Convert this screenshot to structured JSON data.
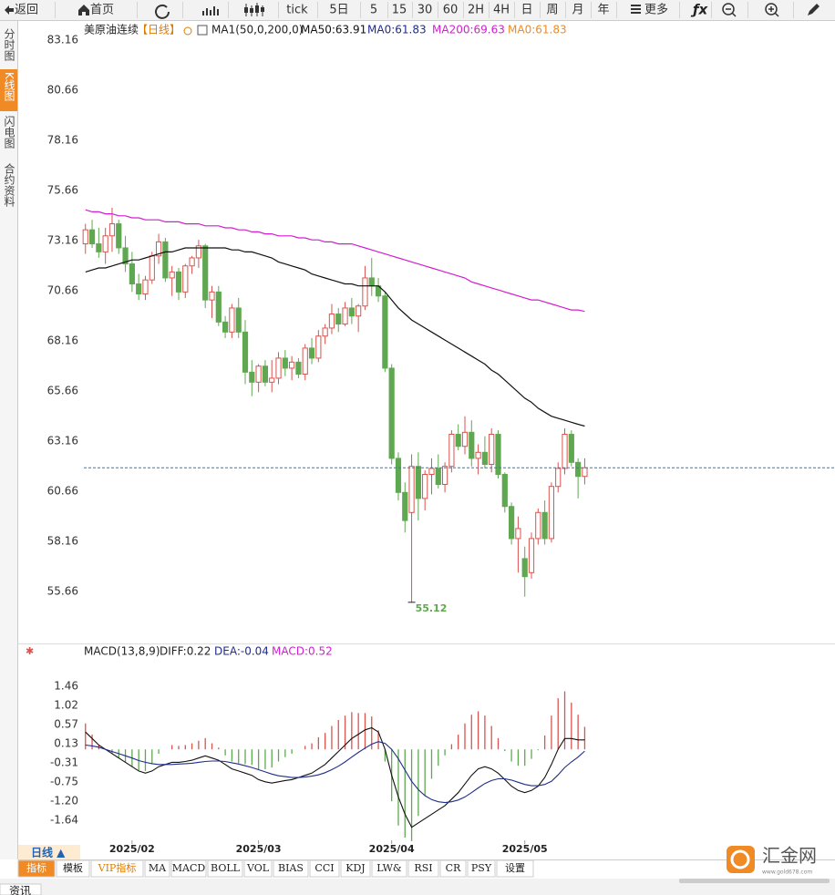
{
  "toolbar": [
    "返回",
    "首页",
    "tick",
    "5日",
    "5",
    "15",
    "30",
    "60",
    "2H",
    "4H",
    "日",
    "周",
    "月",
    "年",
    "更多"
  ],
  "side_tabs": [
    "分时图",
    "K线图",
    "闪电图",
    "合约资料"
  ],
  "chart_data": {
    "type": "candlestick",
    "title": "美原油连续",
    "period": "【日线】",
    "legend": [
      "MA1(50,0,200,0)",
      "MA50:63.91",
      "MA0:61.83",
      "MA200:69.63",
      "MA0:61.83"
    ],
    "up_color": "#d9534f",
    "down_color": "#5fa851",
    "last_color": "#2b7bb9",
    "open": [
      73.0,
      73.7,
      73.0,
      72.6,
      73.4,
      74.0,
      72.8,
      72.0,
      71.0,
      70.5,
      71.2,
      72.4,
      73.1,
      71.3,
      71.6,
      70.6,
      71.9,
      72.3,
      72.9,
      70.2,
      70.6,
      69.1,
      68.6,
      69.8,
      68.6,
      66.6,
      66.1,
      66.9,
      66.1,
      66.3,
      67.3,
      66.8,
      67.1,
      66.5,
      67.8,
      67.3,
      68.4,
      68.8,
      69.5,
      69.0,
      69.8,
      69.4,
      69.9,
      71.3,
      70.9,
      70.4,
      66.8,
      62.3,
      60.6,
      59.6,
      61.9,
      60.3,
      61.5,
      61.8,
      61.0,
      61.9,
      63.5,
      62.9,
      63.6,
      62.3,
      62.6,
      62.0,
      63.5,
      61.5,
      59.9,
      58.3,
      57.3,
      56.6,
      58.3,
      59.6,
      58.3,
      60.9,
      61.8,
      63.5,
      62.1,
      61.4
    ],
    "high": [
      74.0,
      74.2,
      73.8,
      73.8,
      74.8,
      74.2,
      73.4,
      72.6,
      71.5,
      71.4,
      72.6,
      73.5,
      73.3,
      71.9,
      71.8,
      72.0,
      72.4,
      73.2,
      73.0,
      70.9,
      70.9,
      69.4,
      70.0,
      70.3,
      69.2,
      67.2,
      67.0,
      67.2,
      67.2,
      67.6,
      67.7,
      67.4,
      67.3,
      68.0,
      68.3,
      68.7,
      69.0,
      70.0,
      69.8,
      70.1,
      70.3,
      70.0,
      71.9,
      72.3,
      71.3,
      70.6,
      67.0,
      62.6,
      61.1,
      62.5,
      62.6,
      61.7,
      62.3,
      62.5,
      62.1,
      63.7,
      64.0,
      64.4,
      64.2,
      63.0,
      63.4,
      63.8,
      63.7,
      61.6,
      60.1,
      59.4,
      57.9,
      58.6,
      59.8,
      60.2,
      61.1,
      62.1,
      63.8,
      63.7,
      62.3,
      62.3
    ],
    "low": [
      72.5,
      72.8,
      72.3,
      72.0,
      72.6,
      72.5,
      71.6,
      70.6,
      70.2,
      70.2,
      71.0,
      72.0,
      71.1,
      70.4,
      70.2,
      70.3,
      71.5,
      71.8,
      69.8,
      69.3,
      68.9,
      68.3,
      68.3,
      68.3,
      66.0,
      65.4,
      65.6,
      65.9,
      65.6,
      66.0,
      66.4,
      66.2,
      66.3,
      66.2,
      67.0,
      67.1,
      68.0,
      68.5,
      68.6,
      68.9,
      69.0,
      68.6,
      69.7,
      70.4,
      70.1,
      66.6,
      62.0,
      60.2,
      58.6,
      55.12,
      59.2,
      59.7,
      60.5,
      60.8,
      60.6,
      61.6,
      62.7,
      62.5,
      61.9,
      61.5,
      61.8,
      61.6,
      61.3,
      59.6,
      58.0,
      56.6,
      55.4,
      56.3,
      58.0,
      58.0,
      58.1,
      60.6,
      61.5,
      61.9,
      60.3,
      61.0
    ],
    "close": [
      73.7,
      73.0,
      72.6,
      73.4,
      74.0,
      72.8,
      72.0,
      71.0,
      70.5,
      71.2,
      72.4,
      73.1,
      71.3,
      71.6,
      70.6,
      71.9,
      72.3,
      72.9,
      70.2,
      70.6,
      69.1,
      68.6,
      69.8,
      68.6,
      66.6,
      66.1,
      66.9,
      66.1,
      66.3,
      67.3,
      66.8,
      67.1,
      66.5,
      67.8,
      67.3,
      68.4,
      68.8,
      69.5,
      69.0,
      69.8,
      69.4,
      69.9,
      71.3,
      70.9,
      70.4,
      66.8,
      62.3,
      60.6,
      59.2,
      61.9,
      60.3,
      61.5,
      61.8,
      61.0,
      61.9,
      63.5,
      62.9,
      63.6,
      62.3,
      62.6,
      62.0,
      63.5,
      61.5,
      59.9,
      58.3,
      58.8,
      56.4,
      58.3,
      59.6,
      58.3,
      60.9,
      61.8,
      63.5,
      62.1,
      61.4,
      61.83
    ],
    "series": [
      {
        "name": "MA50",
        "color": "#111111",
        "values": [
          71.6,
          71.7,
          71.8,
          71.8,
          71.9,
          72.0,
          72.1,
          72.2,
          72.2,
          72.3,
          72.4,
          72.5,
          72.6,
          72.6,
          72.7,
          72.8,
          72.8,
          72.8,
          72.8,
          72.8,
          72.8,
          72.8,
          72.7,
          72.7,
          72.6,
          72.6,
          72.5,
          72.4,
          72.3,
          72.1,
          72.0,
          71.9,
          71.8,
          71.7,
          71.5,
          71.4,
          71.3,
          71.2,
          71.1,
          71.0,
          71.0,
          70.9,
          70.9,
          70.9,
          70.9,
          70.6,
          70.2,
          69.8,
          69.5,
          69.2,
          69.0,
          68.8,
          68.6,
          68.4,
          68.2,
          68.0,
          67.8,
          67.6,
          67.4,
          67.2,
          67.0,
          66.7,
          66.5,
          66.2,
          65.9,
          65.6,
          65.3,
          65.1,
          64.8,
          64.6,
          64.4,
          64.3,
          64.2,
          64.1,
          64.0,
          63.91
        ]
      },
      {
        "name": "MA200",
        "color": "#d21dd2",
        "values": [
          74.7,
          74.6,
          74.6,
          74.5,
          74.5,
          74.4,
          74.4,
          74.3,
          74.3,
          74.2,
          74.2,
          74.2,
          74.1,
          74.1,
          74.1,
          74.0,
          74.0,
          74.0,
          73.9,
          73.9,
          73.9,
          73.8,
          73.8,
          73.7,
          73.7,
          73.6,
          73.6,
          73.5,
          73.5,
          73.4,
          73.4,
          73.4,
          73.3,
          73.3,
          73.2,
          73.2,
          73.1,
          73.1,
          73.0,
          73.0,
          73.0,
          72.9,
          72.8,
          72.7,
          72.6,
          72.5,
          72.4,
          72.3,
          72.2,
          72.1,
          72.0,
          71.9,
          71.8,
          71.7,
          71.6,
          71.5,
          71.4,
          71.3,
          71.1,
          71.0,
          70.9,
          70.8,
          70.7,
          70.6,
          70.5,
          70.4,
          70.3,
          70.2,
          70.2,
          70.1,
          70.0,
          69.9,
          69.8,
          69.7,
          69.7,
          69.63
        ]
      }
    ],
    "ylim": [
      53.34,
      83.8
    ],
    "yticks": [
      83.16,
      80.66,
      78.16,
      75.66,
      73.16,
      70.66,
      68.16,
      65.66,
      63.16,
      60.66,
      58.16,
      55.66
    ],
    "xlim": [
      -10.1,
      112.6
    ],
    "xticks": [
      {
        "value": 7,
        "label": "2025/02"
      },
      {
        "value": 26,
        "label": "2025/03"
      },
      {
        "value": 46,
        "label": "2025/04"
      },
      {
        "value": 66,
        "label": "2025/05"
      }
    ],
    "period_button": "日线 ▲",
    "macd": {
      "legend": [
        "MACD(13,8,9)",
        "DIFF:0.22",
        "DEA:-0.04",
        "MACD:0.52"
      ],
      "diff": {
        "color": "#111111",
        "values": [
          0.4,
          0.25,
          0.1,
          0.0,
          -0.1,
          -0.2,
          -0.3,
          -0.4,
          -0.5,
          -0.55,
          -0.5,
          -0.4,
          -0.35,
          -0.3,
          -0.3,
          -0.28,
          -0.25,
          -0.2,
          -0.15,
          -0.2,
          -0.25,
          -0.35,
          -0.45,
          -0.5,
          -0.55,
          -0.6,
          -0.7,
          -0.75,
          -0.78,
          -0.75,
          -0.72,
          -0.7,
          -0.65,
          -0.6,
          -0.55,
          -0.45,
          -0.35,
          -0.2,
          -0.05,
          0.1,
          0.25,
          0.35,
          0.45,
          0.5,
          0.4,
          0.0,
          -0.6,
          -1.1,
          -1.5,
          -1.8,
          -1.7,
          -1.6,
          -1.5,
          -1.4,
          -1.3,
          -1.15,
          -1.0,
          -0.8,
          -0.6,
          -0.45,
          -0.4,
          -0.45,
          -0.55,
          -0.7,
          -0.85,
          -0.95,
          -1.0,
          -0.95,
          -0.85,
          -0.65,
          -0.35,
          0.0,
          0.25,
          0.25,
          0.22,
          0.22
        ]
      },
      "dea": {
        "color": "#1f2d8c",
        "values": [
          0.1,
          0.08,
          0.05,
          0.0,
          -0.05,
          -0.1,
          -0.15,
          -0.2,
          -0.26,
          -0.3,
          -0.33,
          -0.35,
          -0.35,
          -0.35,
          -0.34,
          -0.33,
          -0.32,
          -0.3,
          -0.28,
          -0.27,
          -0.27,
          -0.28,
          -0.31,
          -0.34,
          -0.38,
          -0.42,
          -0.47,
          -0.52,
          -0.57,
          -0.61,
          -0.63,
          -0.65,
          -0.65,
          -0.64,
          -0.62,
          -0.59,
          -0.54,
          -0.47,
          -0.39,
          -0.29,
          -0.18,
          -0.07,
          0.03,
          0.12,
          0.18,
          0.14,
          0.0,
          -0.22,
          -0.48,
          -0.74,
          -0.93,
          -1.07,
          -1.16,
          -1.21,
          -1.23,
          -1.21,
          -1.17,
          -1.1,
          -1.0,
          -0.89,
          -0.79,
          -0.72,
          -0.68,
          -0.68,
          -0.71,
          -0.76,
          -0.81,
          -0.84,
          -0.84,
          -0.81,
          -0.74,
          -0.59,
          -0.42,
          -0.29,
          -0.18,
          -0.04
        ]
      },
      "hist": {
        "up_color": "#d9534f",
        "down_color": "#5fa851",
        "values": [
          0.6,
          0.34,
          0.1,
          0.0,
          -0.1,
          -0.2,
          -0.3,
          -0.4,
          -0.48,
          -0.5,
          -0.34,
          -0.1,
          0.0,
          0.1,
          0.08,
          0.1,
          0.14,
          0.2,
          0.26,
          0.14,
          0.04,
          -0.14,
          -0.28,
          -0.32,
          -0.34,
          -0.36,
          -0.46,
          -0.46,
          -0.42,
          -0.28,
          -0.18,
          -0.1,
          0.0,
          0.08,
          0.14,
          0.28,
          0.38,
          0.54,
          0.68,
          0.78,
          0.86,
          0.84,
          0.84,
          0.76,
          0.44,
          -0.28,
          -1.2,
          -1.76,
          -2.04,
          -2.12,
          -1.54,
          -1.06,
          -0.68,
          -0.38,
          -0.14,
          0.12,
          0.34,
          0.6,
          0.8,
          0.88,
          0.78,
          0.54,
          0.26,
          -0.04,
          -0.28,
          -0.38,
          -0.38,
          -0.22,
          -0.02,
          0.32,
          0.78,
          1.18,
          1.34,
          1.08,
          0.8,
          0.52
        ]
      },
      "ylim": [
        -2.27,
        2.11
      ],
      "yticks": [
        1.46,
        1.02,
        0.57,
        0.13,
        -0.31,
        -0.75,
        {
          "value": -1.2,
          "label": "-1.20"
        },
        -1.64
      ]
    }
  },
  "indicator_tabs": [
    "指标",
    "模板",
    "VIP指标",
    "MA",
    "MACD",
    "BOLL",
    "VOL",
    "BIAS",
    "CCI",
    "KDJ",
    "LW&",
    "RSI",
    "CR",
    "PSY",
    "设置"
  ],
  "logo": {
    "name": "汇金网",
    "url": "www.gold678.com"
  },
  "footer_tab": "资讯"
}
